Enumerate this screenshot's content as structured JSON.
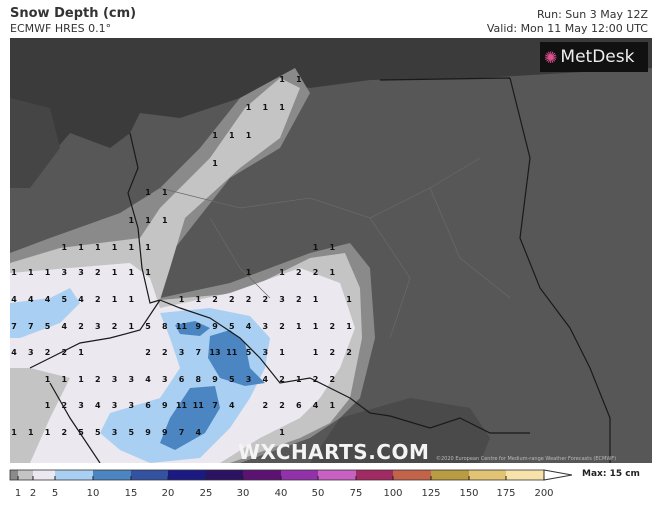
{
  "header": {
    "title": "Snow Depth (cm)",
    "model": "ECMWF HRES 0.1°",
    "run": "Run: Sun 3 May 12Z",
    "valid": "Valid: Mon 11 May 12:00 UTC"
  },
  "branding": {
    "metdesk_logo": "MetDesk",
    "watermark": "WXCHARTS.COM",
    "copyright": "©2020 European Centre for Medium-range Weather Forecasts (ECMWF)"
  },
  "colors": {
    "land": "#575757",
    "sea": "#3b3b3b",
    "border": "#1a1a1a"
  },
  "grid_labels": [
    [
      null,
      null,
      null,
      null,
      null,
      null,
      null,
      null,
      null,
      null,
      null,
      null,
      null,
      null,
      null,
      null,
      "1",
      "1"
    ],
    [
      null,
      null,
      null,
      null,
      null,
      null,
      null,
      null,
      null,
      null,
      null,
      null,
      null,
      null,
      "1",
      "1",
      "1"
    ],
    [
      null,
      null,
      null,
      null,
      null,
      null,
      null,
      null,
      null,
      null,
      null,
      null,
      "1",
      "1",
      "1"
    ],
    [
      null,
      null,
      null,
      null,
      null,
      null,
      null,
      null,
      null,
      null,
      null,
      null,
      "1"
    ],
    [
      null,
      null,
      null,
      null,
      null,
      null,
      null,
      null,
      "1",
      "1"
    ],
    [
      null,
      null,
      null,
      null,
      null,
      null,
      null,
      "1",
      "1",
      "1"
    ],
    [
      null,
      null,
      null,
      "1",
      "1",
      "1",
      "1",
      "1",
      "1",
      null,
      null,
      null,
      null,
      null,
      null,
      null,
      null,
      null,
      "1",
      "1"
    ],
    [
      "1",
      "1",
      "1",
      "3",
      "3",
      "2",
      "1",
      "1",
      "1",
      null,
      null,
      null,
      null,
      null,
      "1",
      null,
      "1",
      "2",
      "2",
      "1"
    ],
    [
      "4",
      "4",
      "4",
      "5",
      "4",
      "2",
      "1",
      "1",
      null,
      null,
      "1",
      "1",
      "2",
      "2",
      "2",
      "2",
      "3",
      "2",
      "1",
      null,
      "1"
    ],
    [
      "7",
      "7",
      "5",
      "4",
      "2",
      "3",
      "2",
      "1",
      "5",
      "8",
      "11",
      "9",
      "9",
      "5",
      "4",
      "3",
      "2",
      "1",
      "1",
      "2",
      "1"
    ],
    [
      "4",
      "3",
      "2",
      "2",
      "1",
      null,
      null,
      null,
      "2",
      "2",
      "3",
      "7",
      "13",
      "11",
      "5",
      "3",
      "1",
      null,
      "1",
      "2",
      "2"
    ],
    [
      null,
      null,
      "1",
      "1",
      "1",
      "2",
      "3",
      "3",
      "4",
      "3",
      "6",
      "8",
      "9",
      "5",
      "3",
      "4",
      "2",
      "1",
      "2",
      "2"
    ],
    [
      null,
      null,
      "1",
      "2",
      "3",
      "4",
      "3",
      "3",
      "6",
      "9",
      "11",
      "11",
      "7",
      "4",
      null,
      "2",
      "2",
      "6",
      "4",
      "1"
    ],
    [
      "1",
      "1",
      "1",
      "2",
      "5",
      "5",
      "3",
      "5",
      "9",
      "9",
      "7",
      "4",
      null,
      null,
      null,
      null,
      "1"
    ]
  ],
  "legend": {
    "ticks": [
      "1",
      "2",
      "5",
      "10",
      "15",
      "20",
      "25",
      "30",
      "40",
      "50",
      "75",
      "100",
      "125",
      "150",
      "175",
      "200"
    ],
    "colors": [
      "#8a8a8a",
      "#c4c4c4",
      "#ece8ef",
      "#a9d0f2",
      "#4b86c2",
      "#3452a2",
      "#1b1a82",
      "#2c1262",
      "#5c1272",
      "#9232aa",
      "#c862c2",
      "#a22a62",
      "#c2634a",
      "#b99b42",
      "#e2c373",
      "#f8e2ab"
    ],
    "max_label": "Max: 15 cm"
  }
}
